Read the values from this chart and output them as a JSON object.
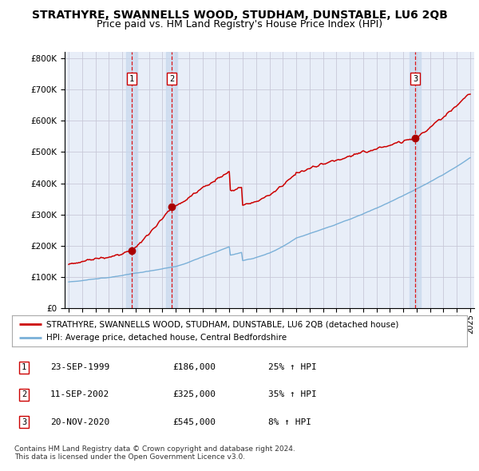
{
  "title": "STRATHYRE, SWANNELLS WOOD, STUDHAM, DUNSTABLE, LU6 2QB",
  "subtitle": "Price paid vs. HM Land Registry's House Price Index (HPI)",
  "ylim": [
    0,
    820000
  ],
  "yticks": [
    0,
    100000,
    200000,
    300000,
    400000,
    500000,
    600000,
    700000,
    800000
  ],
  "ytick_labels": [
    "£0",
    "£100K",
    "£200K",
    "£300K",
    "£400K",
    "£500K",
    "£600K",
    "£700K",
    "£800K"
  ],
  "x_start_year": 1995,
  "x_end_year": 2025,
  "sales": [
    {
      "label": "1",
      "date_num": 1999.72,
      "price": 186000
    },
    {
      "label": "2",
      "date_num": 2002.69,
      "price": 325000
    },
    {
      "label": "3",
      "date_num": 2020.89,
      "price": 545000
    }
  ],
  "hpi_color": "#7ab0d8",
  "price_color": "#cc0000",
  "dot_color": "#aa0000",
  "bg_color": "#e8eef8",
  "grid_color": "#c8c8d8",
  "sale_band_color": "#c8d8ee",
  "legend_line1": "STRATHYRE, SWANNELLS WOOD, STUDHAM, DUNSTABLE, LU6 2QB (detached house)",
  "legend_line2": "HPI: Average price, detached house, Central Bedfordshire",
  "table_rows": [
    [
      "1",
      "23-SEP-1999",
      "£186,000",
      "25% ↑ HPI"
    ],
    [
      "2",
      "11-SEP-2002",
      "£325,000",
      "35% ↑ HPI"
    ],
    [
      "3",
      "20-NOV-2020",
      "£545,000",
      "8% ↑ HPI"
    ]
  ],
  "footer": "Contains HM Land Registry data © Crown copyright and database right 2024.\nThis data is licensed under the Open Government Licence v3.0.",
  "title_fontsize": 10,
  "subtitle_fontsize": 9
}
